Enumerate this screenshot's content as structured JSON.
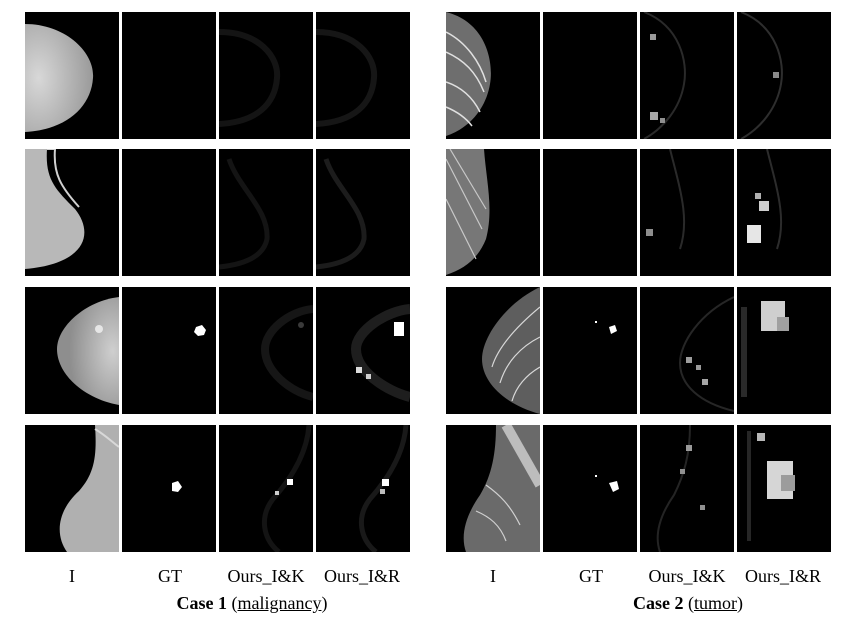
{
  "figure": {
    "columns": [
      "I",
      "GT",
      "Ours_I&K",
      "Ours_I&R"
    ],
    "cases": [
      {
        "title": "Case 1",
        "subtitle": "malignancy"
      },
      {
        "title": "Case 2",
        "subtitle": "tumor"
      }
    ]
  }
}
